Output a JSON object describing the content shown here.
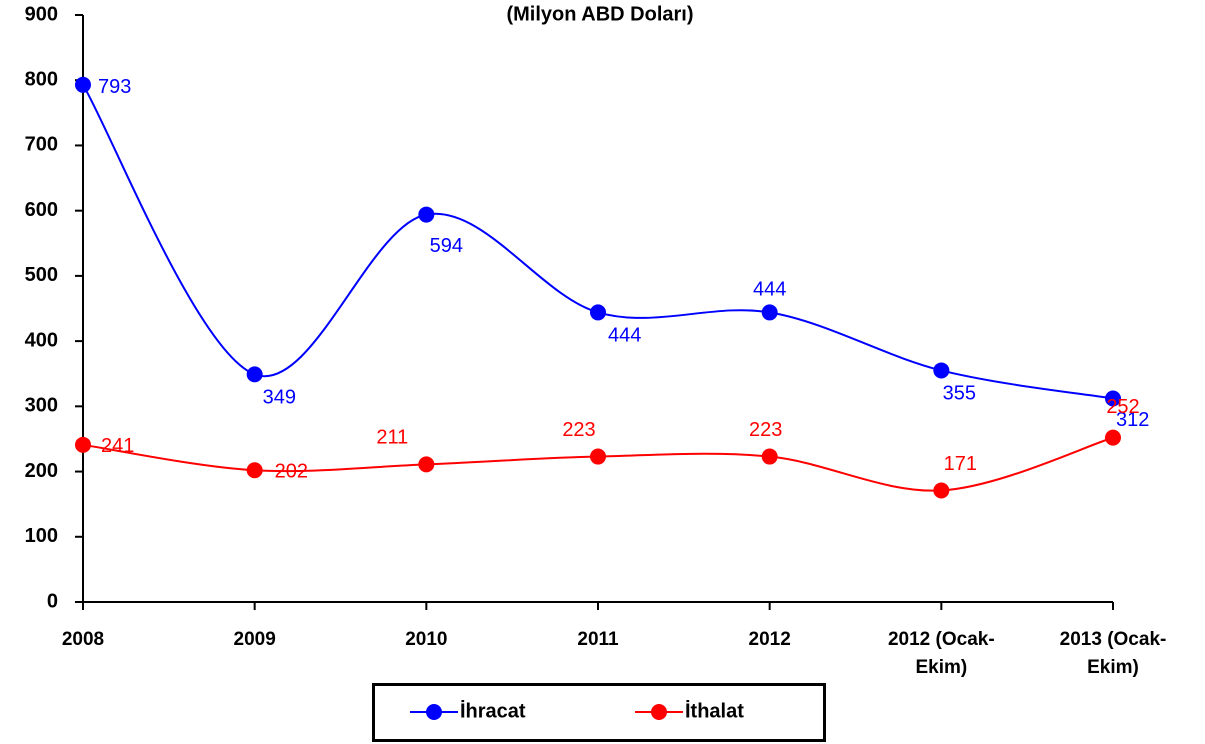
{
  "chart_data": {
    "type": "line",
    "title": "(Milyon ABD Doları)",
    "categories": [
      "2008",
      "2009",
      "2010",
      "2011",
      "2012",
      "2012 (Ocak-Ekim)",
      "2013 (Ocak-Ekim)"
    ],
    "series": [
      {
        "name": "İhracat",
        "color": "#0000ff",
        "values": [
          793,
          349,
          594,
          444,
          444,
          355,
          312
        ]
      },
      {
        "name": "İthalat",
        "color": "#ff0000",
        "values": [
          241,
          202,
          211,
          223,
          223,
          171,
          252
        ]
      }
    ],
    "ylim": [
      0,
      900
    ],
    "yticks": [
      0,
      100,
      200,
      300,
      400,
      500,
      600,
      700,
      800,
      900
    ],
    "smooth": true
  }
}
